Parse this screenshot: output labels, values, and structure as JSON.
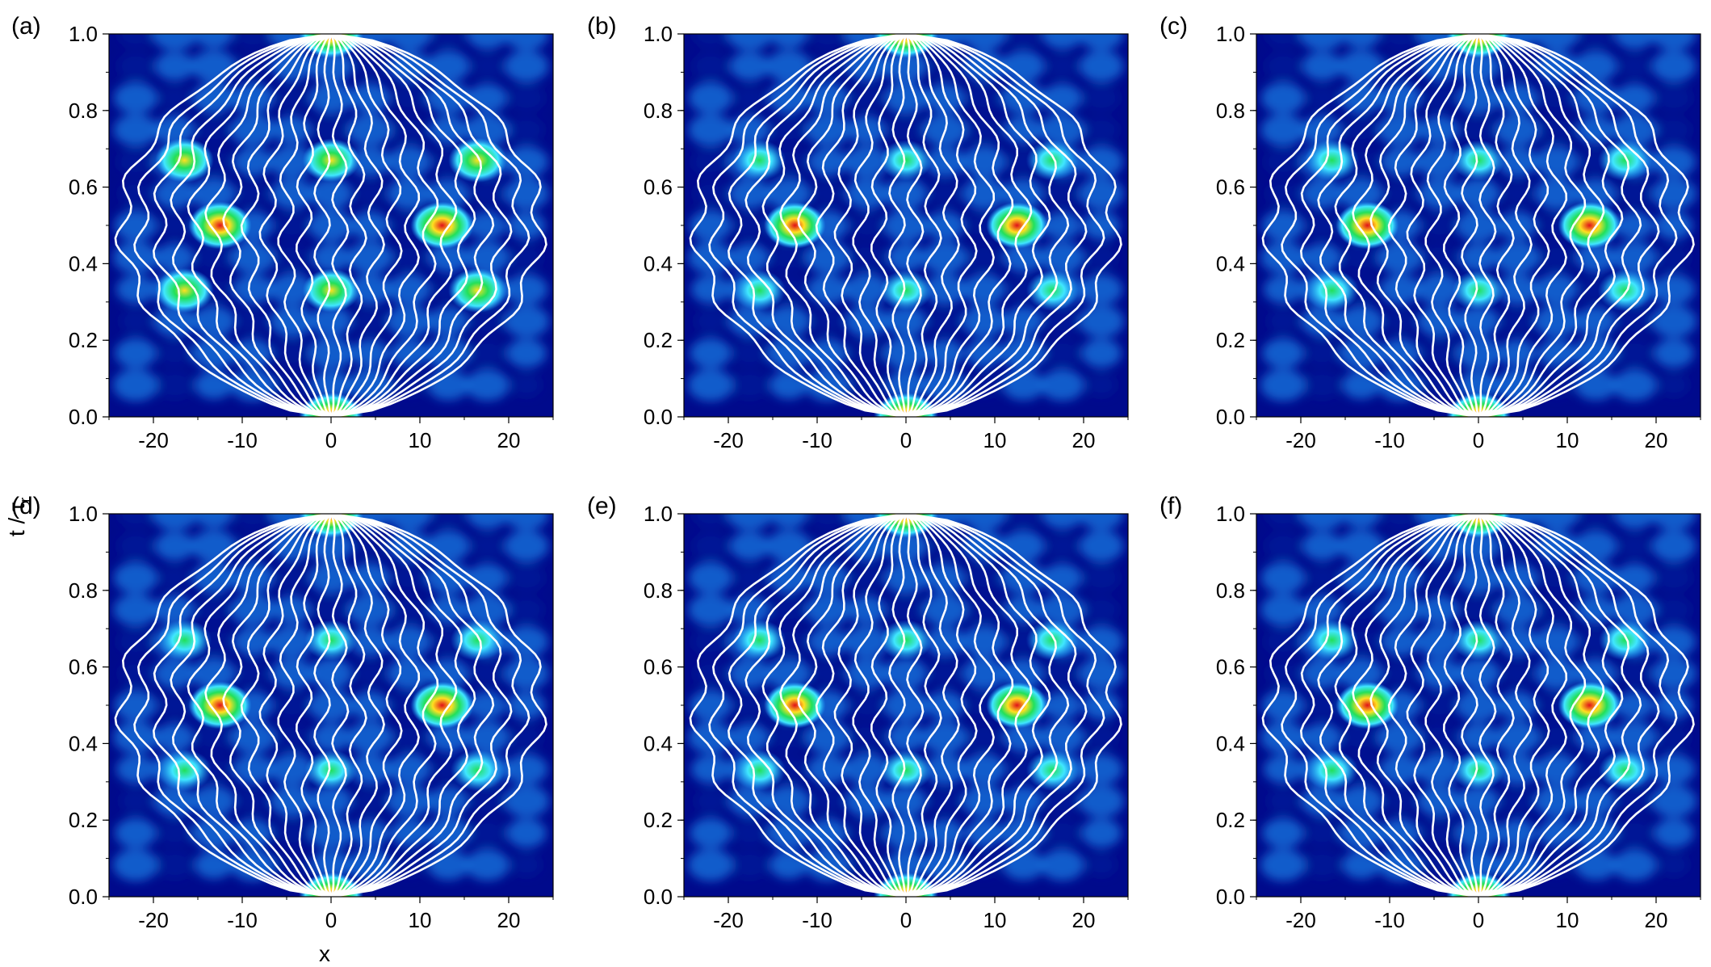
{
  "figure": {
    "xlabel": "x",
    "ylabel": "t / τ",
    "ylabel_subscript": "r"
  },
  "colors": {
    "background": "#000a8c",
    "low": "#0a1f9e",
    "mid": "#1ea0ff",
    "cyan": "#40e6ff",
    "green": "#22e05a",
    "yellow": "#ffe020",
    "red": "#e0101a",
    "trajectory": "#ffffff"
  },
  "chart_data": [
    {
      "panel": "(a)",
      "type": "heatmap",
      "xlim": [
        -25,
        25
      ],
      "ylim": [
        0.0,
        1.0
      ],
      "x_ticks": [
        -20,
        -10,
        0,
        10,
        20
      ],
      "x_tick_labels": [
        "-20",
        "-10",
        "0",
        "10",
        "20"
      ],
      "y_ticks": [
        0.0,
        0.2,
        0.4,
        0.6,
        0.8,
        1.0
      ],
      "y_tick_labels": [
        "0.0",
        "0.2",
        "0.4",
        "0.6",
        "0.8",
        "1.0"
      ],
      "hotspots": [
        {
          "x": 0,
          "t": 0.0,
          "intensity": 1.0
        },
        {
          "x": 0,
          "t": 1.0,
          "intensity": 1.0
        },
        {
          "x": -12.5,
          "t": 0.5,
          "intensity": 0.95
        },
        {
          "x": 12.5,
          "t": 0.5,
          "intensity": 0.95
        },
        {
          "x": -16.5,
          "t": 0.33,
          "intensity": 0.8
        },
        {
          "x": 16.5,
          "t": 0.33,
          "intensity": 0.8
        },
        {
          "x": -16.5,
          "t": 0.67,
          "intensity": 0.8
        },
        {
          "x": 16.5,
          "t": 0.67,
          "intensity": 0.8
        },
        {
          "x": 0,
          "t": 0.33,
          "intensity": 0.75
        },
        {
          "x": 0,
          "t": 0.67,
          "intensity": 0.75
        }
      ]
    },
    {
      "panel": "(b)",
      "type": "heatmap",
      "xlim": [
        -25,
        25
      ],
      "ylim": [
        0.0,
        1.0
      ],
      "x_ticks": [
        -20,
        -10,
        0,
        10,
        20
      ],
      "x_tick_labels": [
        "-20",
        "-10",
        "0",
        "10",
        "20"
      ],
      "y_ticks": [
        0.0,
        0.2,
        0.4,
        0.6,
        0.8,
        1.0
      ],
      "y_tick_labels": [
        "0.0",
        "0.2",
        "0.4",
        "0.6",
        "0.8",
        "1.0"
      ],
      "hotspots": [
        {
          "x": 0,
          "t": 0.0,
          "intensity": 1.0
        },
        {
          "x": 0,
          "t": 1.0,
          "intensity": 1.0
        },
        {
          "x": -12.5,
          "t": 0.5,
          "intensity": 0.9
        },
        {
          "x": 12.5,
          "t": 0.5,
          "intensity": 0.9
        },
        {
          "x": -16.5,
          "t": 0.33,
          "intensity": 0.6
        },
        {
          "x": 16.5,
          "t": 0.33,
          "intensity": 0.6
        },
        {
          "x": -16.5,
          "t": 0.67,
          "intensity": 0.6
        },
        {
          "x": 16.5,
          "t": 0.67,
          "intensity": 0.6
        },
        {
          "x": 0,
          "t": 0.33,
          "intensity": 0.6
        },
        {
          "x": 0,
          "t": 0.67,
          "intensity": 0.6
        }
      ]
    },
    {
      "panel": "(c)",
      "type": "heatmap",
      "xlim": [
        -25,
        25
      ],
      "ylim": [
        0.0,
        1.0
      ],
      "x_ticks": [
        -20,
        -10,
        0,
        10,
        20
      ],
      "x_tick_labels": [
        "-20",
        "-10",
        "0",
        "10",
        "20"
      ],
      "y_ticks": [
        0.0,
        0.2,
        0.4,
        0.6,
        0.8,
        1.0
      ],
      "y_tick_labels": [
        "0.0",
        "0.2",
        "0.4",
        "0.6",
        "0.8",
        "1.0"
      ],
      "hotspots": [
        {
          "x": 0,
          "t": 0.0,
          "intensity": 1.0
        },
        {
          "x": 0,
          "t": 1.0,
          "intensity": 1.0
        },
        {
          "x": -12.5,
          "t": 0.5,
          "intensity": 0.95
        },
        {
          "x": 12.5,
          "t": 0.5,
          "intensity": 0.95
        },
        {
          "x": -16.5,
          "t": 0.33,
          "intensity": 0.65
        },
        {
          "x": 16.5,
          "t": 0.33,
          "intensity": 0.65
        },
        {
          "x": -16.5,
          "t": 0.67,
          "intensity": 0.65
        },
        {
          "x": 16.5,
          "t": 0.67,
          "intensity": 0.65
        },
        {
          "x": 0,
          "t": 0.33,
          "intensity": 0.6
        },
        {
          "x": 0,
          "t": 0.67,
          "intensity": 0.6
        }
      ]
    },
    {
      "panel": "(d)",
      "type": "heatmap",
      "xlim": [
        -25,
        25
      ],
      "ylim": [
        0.0,
        1.0
      ],
      "x_ticks": [
        -20,
        -10,
        0,
        10,
        20
      ],
      "x_tick_labels": [
        "-20",
        "-10",
        "0",
        "10",
        "20"
      ],
      "y_ticks": [
        0.0,
        0.2,
        0.4,
        0.6,
        0.8,
        1.0
      ],
      "y_tick_labels": [
        "0.0",
        "0.2",
        "0.4",
        "0.6",
        "0.8",
        "1.0"
      ],
      "hotspots": [
        {
          "x": 0,
          "t": 0.0,
          "intensity": 1.0
        },
        {
          "x": 0,
          "t": 1.0,
          "intensity": 1.0
        },
        {
          "x": -12.5,
          "t": 0.5,
          "intensity": 0.95
        },
        {
          "x": 12.5,
          "t": 0.5,
          "intensity": 0.95
        },
        {
          "x": -16.5,
          "t": 0.33,
          "intensity": 0.65
        },
        {
          "x": 16.5,
          "t": 0.33,
          "intensity": 0.65
        },
        {
          "x": -16.5,
          "t": 0.67,
          "intensity": 0.65
        },
        {
          "x": 16.5,
          "t": 0.67,
          "intensity": 0.65
        },
        {
          "x": 0,
          "t": 0.33,
          "intensity": 0.6
        },
        {
          "x": 0,
          "t": 0.67,
          "intensity": 0.6
        }
      ]
    },
    {
      "panel": "(e)",
      "type": "heatmap",
      "xlim": [
        -25,
        25
      ],
      "ylim": [
        0.0,
        1.0
      ],
      "x_ticks": [
        -20,
        -10,
        0,
        10,
        20
      ],
      "x_tick_labels": [
        "-20",
        "-10",
        "0",
        "10",
        "20"
      ],
      "y_ticks": [
        0.0,
        0.2,
        0.4,
        0.6,
        0.8,
        1.0
      ],
      "y_tick_labels": [
        "0.0",
        "0.2",
        "0.4",
        "0.6",
        "0.8",
        "1.0"
      ],
      "hotspots": [
        {
          "x": 0,
          "t": 0.0,
          "intensity": 1.0
        },
        {
          "x": 0,
          "t": 1.0,
          "intensity": 1.0
        },
        {
          "x": -12.5,
          "t": 0.5,
          "intensity": 0.9
        },
        {
          "x": 12.5,
          "t": 0.5,
          "intensity": 0.9
        },
        {
          "x": -16.5,
          "t": 0.33,
          "intensity": 0.6
        },
        {
          "x": 16.5,
          "t": 0.33,
          "intensity": 0.6
        },
        {
          "x": -16.5,
          "t": 0.67,
          "intensity": 0.6
        },
        {
          "x": 16.5,
          "t": 0.67,
          "intensity": 0.6
        },
        {
          "x": 0,
          "t": 0.33,
          "intensity": 0.6
        },
        {
          "x": 0,
          "t": 0.67,
          "intensity": 0.6
        }
      ]
    },
    {
      "panel": "(f)",
      "type": "heatmap",
      "xlim": [
        -25,
        25
      ],
      "ylim": [
        0.0,
        1.0
      ],
      "x_ticks": [
        -20,
        -10,
        0,
        10,
        20
      ],
      "x_tick_labels": [
        "-20",
        "-10",
        "0",
        "10",
        "20"
      ],
      "y_ticks": [
        0.0,
        0.2,
        0.4,
        0.6,
        0.8,
        1.0
      ],
      "y_tick_labels": [
        "0.0",
        "0.2",
        "0.4",
        "0.6",
        "0.8",
        "1.0"
      ],
      "hotspots": [
        {
          "x": 0,
          "t": 0.0,
          "intensity": 1.0
        },
        {
          "x": 0,
          "t": 1.0,
          "intensity": 1.0
        },
        {
          "x": -12.5,
          "t": 0.5,
          "intensity": 0.95
        },
        {
          "x": 12.5,
          "t": 0.5,
          "intensity": 0.95
        },
        {
          "x": -16.5,
          "t": 0.33,
          "intensity": 0.6
        },
        {
          "x": 16.5,
          "t": 0.33,
          "intensity": 0.6
        },
        {
          "x": -16.5,
          "t": 0.67,
          "intensity": 0.6
        },
        {
          "x": 16.5,
          "t": 0.67,
          "intensity": 0.6
        },
        {
          "x": 0,
          "t": 0.33,
          "intensity": 0.6
        },
        {
          "x": 0,
          "t": 0.67,
          "intensity": 0.6
        }
      ]
    }
  ]
}
